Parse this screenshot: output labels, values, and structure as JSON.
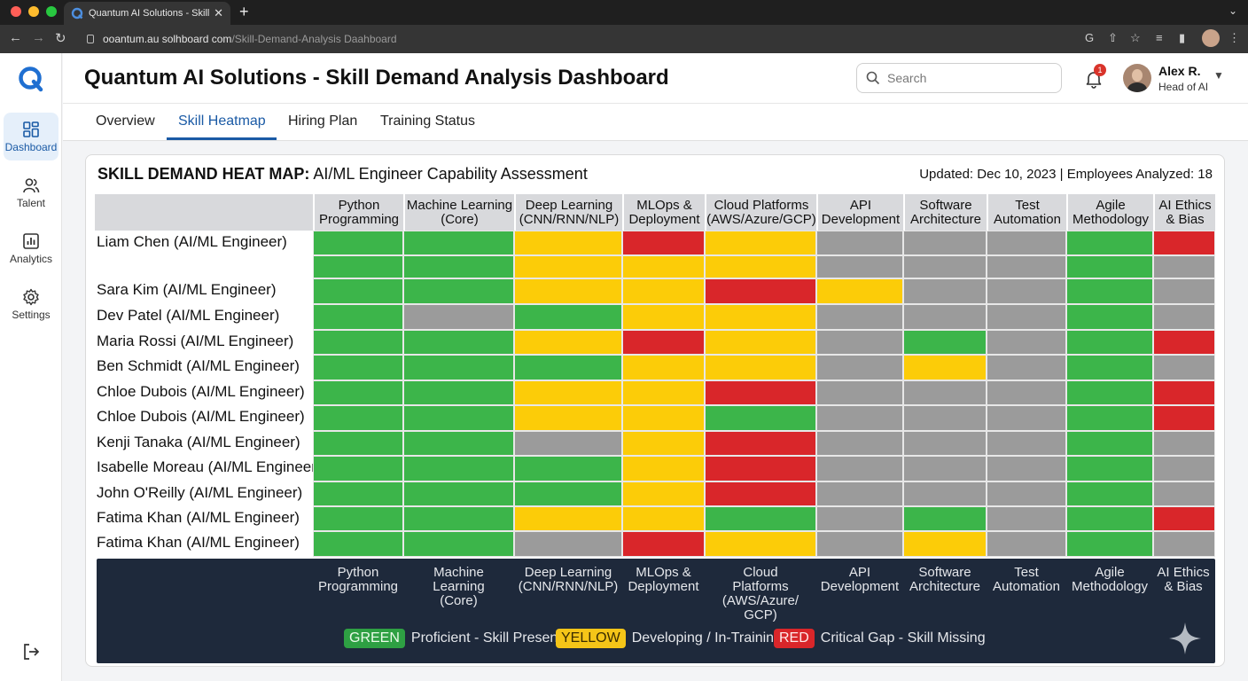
{
  "browser": {
    "tab_title": "Quantum AI Solutions - Skill I",
    "url_host": "ooantum.au solhboard com",
    "url_path": "/Skill-Demand-Analysis Daahboard"
  },
  "sidebar": {
    "items": [
      {
        "label": "Dashboard",
        "icon": "dashboard-icon"
      },
      {
        "label": "Talent",
        "icon": "people-icon"
      },
      {
        "label": "Analytics",
        "icon": "chart-icon"
      },
      {
        "label": "Settings",
        "icon": "gear-icon"
      }
    ]
  },
  "header": {
    "title": "Quantum AI Solutions - Skill Demand Analysis Dashboard",
    "search_placeholder": "Search",
    "notifications": "1",
    "user_name": "Alex R.",
    "user_role": "Head of AI"
  },
  "tabs": [
    "Overview",
    "Skill Heatmap",
    "Hiring Plan",
    "Training Status"
  ],
  "heatmap": {
    "title_bold": "SKILL DEMAND HEAT MAP:",
    "title_rest": " AI/ML Engineer Capability Assessment",
    "meta": "Updated: Dec 10, 2023 | Employees Analyzed: 18",
    "columns": [
      [
        "Python",
        "Programming"
      ],
      [
        "Machine Learning",
        "(Core)"
      ],
      [
        "Deep Learning",
        "(CNN/RNN/NLP)"
      ],
      [
        "MLOps &",
        "Deployment"
      ],
      [
        "Cloud Platforms",
        "(AWS/Azure/GCP)"
      ],
      [
        "API",
        "Development"
      ],
      [
        "Software",
        "Architecture"
      ],
      [
        "Test",
        "Automation"
      ],
      [
        "Agile",
        "Methodology"
      ],
      [
        "AI Ethics",
        "& Bias"
      ]
    ],
    "rows": [
      {
        "name": "Liam Chen (AI/ML Engineer)",
        "cells": [
          "G",
          "G",
          "Y",
          "R",
          "Y",
          "N",
          "N",
          "N",
          "G",
          "R"
        ]
      },
      {
        "name": "",
        "cells": [
          "G",
          "G",
          "Y",
          "Y",
          "Y",
          "N",
          "N",
          "N",
          "G",
          "N"
        ]
      },
      {
        "name": "Sara Kim (AI/ML Engineer)",
        "cells": [
          "G",
          "G",
          "Y",
          "Y",
          "R",
          "Y",
          "N",
          "N",
          "G",
          "N"
        ]
      },
      {
        "name": "Dev Patel (AI/ML Engineer)",
        "cells": [
          "G",
          "N",
          "G",
          "Y",
          "Y",
          "N",
          "N",
          "N",
          "G",
          "N"
        ]
      },
      {
        "name": "Maria Rossi (AI/ML Engineer)",
        "cells": [
          "G",
          "G",
          "Y",
          "R",
          "Y",
          "N",
          "G",
          "N",
          "G",
          "R"
        ]
      },
      {
        "name": "Ben Schmidt (AI/ML Engineer)",
        "cells": [
          "G",
          "G",
          "G",
          "Y",
          "Y",
          "N",
          "Y",
          "N",
          "G",
          "N"
        ]
      },
      {
        "name": "Chloe Dubois (AI/ML Engineer)",
        "cells": [
          "G",
          "G",
          "Y",
          "Y",
          "R",
          "N",
          "N",
          "N",
          "G",
          "R"
        ]
      },
      {
        "name": "Chloe Dubois (AI/ML Engineer)",
        "cells": [
          "G",
          "G",
          "Y",
          "Y",
          "G",
          "N",
          "N",
          "N",
          "G",
          "R"
        ]
      },
      {
        "name": "Kenji Tanaka (AI/ML Engineer)",
        "cells": [
          "G",
          "G",
          "N",
          "Y",
          "R",
          "N",
          "N",
          "N",
          "G",
          "N"
        ]
      },
      {
        "name": "Isabelle Moreau (AI/ML Engineer)",
        "cells": [
          "G",
          "G",
          "G",
          "Y",
          "R",
          "N",
          "N",
          "N",
          "G",
          "N"
        ]
      },
      {
        "name": "John O'Reilly (AI/ML Engineer)",
        "cells": [
          "G",
          "G",
          "G",
          "Y",
          "R",
          "N",
          "N",
          "N",
          "G",
          "N"
        ]
      },
      {
        "name": "Fatima Khan (AI/ML Engineer)",
        "cells": [
          "G",
          "G",
          "Y",
          "Y",
          "G",
          "N",
          "G",
          "N",
          "G",
          "R"
        ]
      },
      {
        "name": "Fatima Khan (AI/ML Engineer)",
        "cells": [
          "G",
          "G",
          "N",
          "R",
          "Y",
          "N",
          "Y",
          "N",
          "G",
          "N"
        ]
      }
    ],
    "legend_columns": [
      [
        "Python",
        "Programming"
      ],
      [
        "Machine",
        "Learning",
        "(Core)"
      ],
      [
        "Deep Learning",
        "(CNN/RNN/NLP)"
      ],
      [
        "MLOps &",
        "Deployment"
      ],
      [
        "Cloud",
        "Platforms",
        "(AWS/Azure/",
        "GCP)"
      ],
      [
        "API",
        "Development"
      ],
      [
        "Software",
        "Architecture"
      ],
      [
        "Test",
        "Automation"
      ],
      [
        "Agile",
        "Methodology"
      ],
      [
        "AI Ethics",
        "& Bias"
      ]
    ],
    "legend": [
      {
        "chip": "GREEN",
        "text": "Proficient - Skill Present"
      },
      {
        "chip": "YELLOW",
        "text": "Developing / In-Training"
      },
      {
        "chip": "RED",
        "text": "Critical Gap - Skill Missing"
      }
    ]
  },
  "colors": {
    "G": "#3cb54a",
    "Y": "#fccc08",
    "R": "#d9262a",
    "N": "#9b9b9b",
    "accent": "#1a5aa5"
  }
}
